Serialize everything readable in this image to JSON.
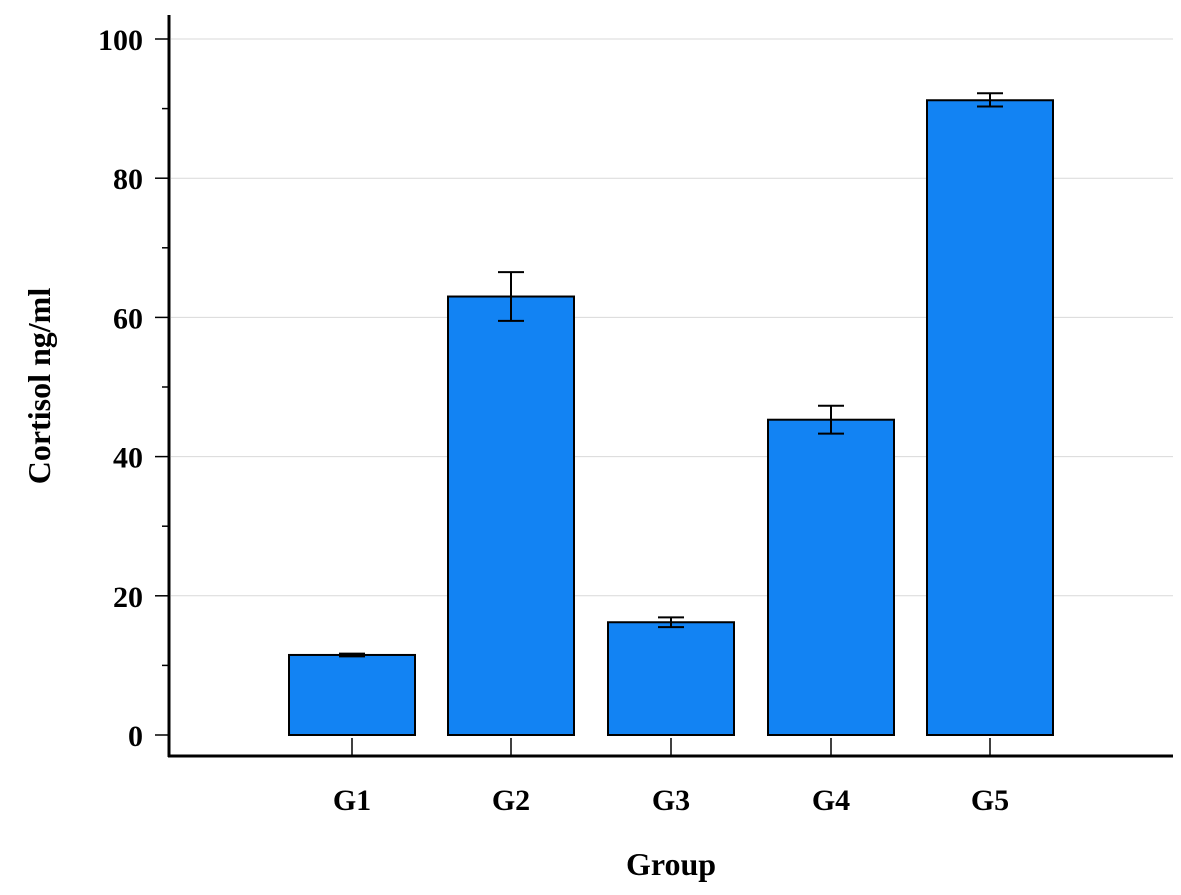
{
  "chart_data": {
    "type": "bar",
    "title": "",
    "xlabel": "Group",
    "ylabel": "Cortisol ng/ml",
    "categories": [
      "G1",
      "G2",
      "G3",
      "G4",
      "G5"
    ],
    "values": [
      11.5,
      63.0,
      16.2,
      45.3,
      91.2
    ],
    "error_low": [
      11.3,
      59.5,
      15.5,
      43.3,
      90.3
    ],
    "error_high": [
      11.7,
      66.5,
      16.9,
      47.3,
      92.2
    ],
    "ylim": [
      0,
      100
    ],
    "yticks": [
      "0",
      "20",
      "40",
      "60",
      "80",
      "100"
    ],
    "grid": true,
    "bar_color": "#1283f3"
  }
}
